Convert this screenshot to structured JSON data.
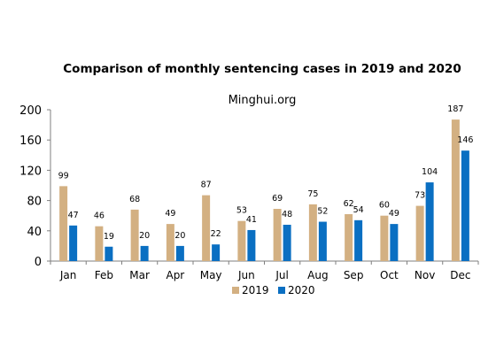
{
  "chart_data": {
    "type": "bar",
    "title": "Comparison of monthly sentencing cases in 2019 and 2020",
    "subtitle": "Minghui.org",
    "categories": [
      "Jan",
      "Feb",
      "Mar",
      "Apr",
      "May",
      "Jun",
      "Jul",
      "Aug",
      "Sep",
      "Oct",
      "Nov",
      "Dec"
    ],
    "series": [
      {
        "name": "2019",
        "color": "#D3B082",
        "values": [
          99,
          46,
          68,
          49,
          87,
          53,
          69,
          75,
          62,
          60,
          73,
          187
        ]
      },
      {
        "name": "2020",
        "color": "#0A6FC2",
        "values": [
          47,
          19,
          20,
          20,
          22,
          41,
          48,
          52,
          54,
          49,
          104,
          146
        ]
      }
    ],
    "ylim": [
      0,
      200
    ],
    "yticks": [
      0,
      40,
      80,
      120,
      160,
      200
    ],
    "xlabel": "",
    "ylabel": "",
    "grid": false,
    "legend": "bottom-center",
    "data_labels": true
  }
}
